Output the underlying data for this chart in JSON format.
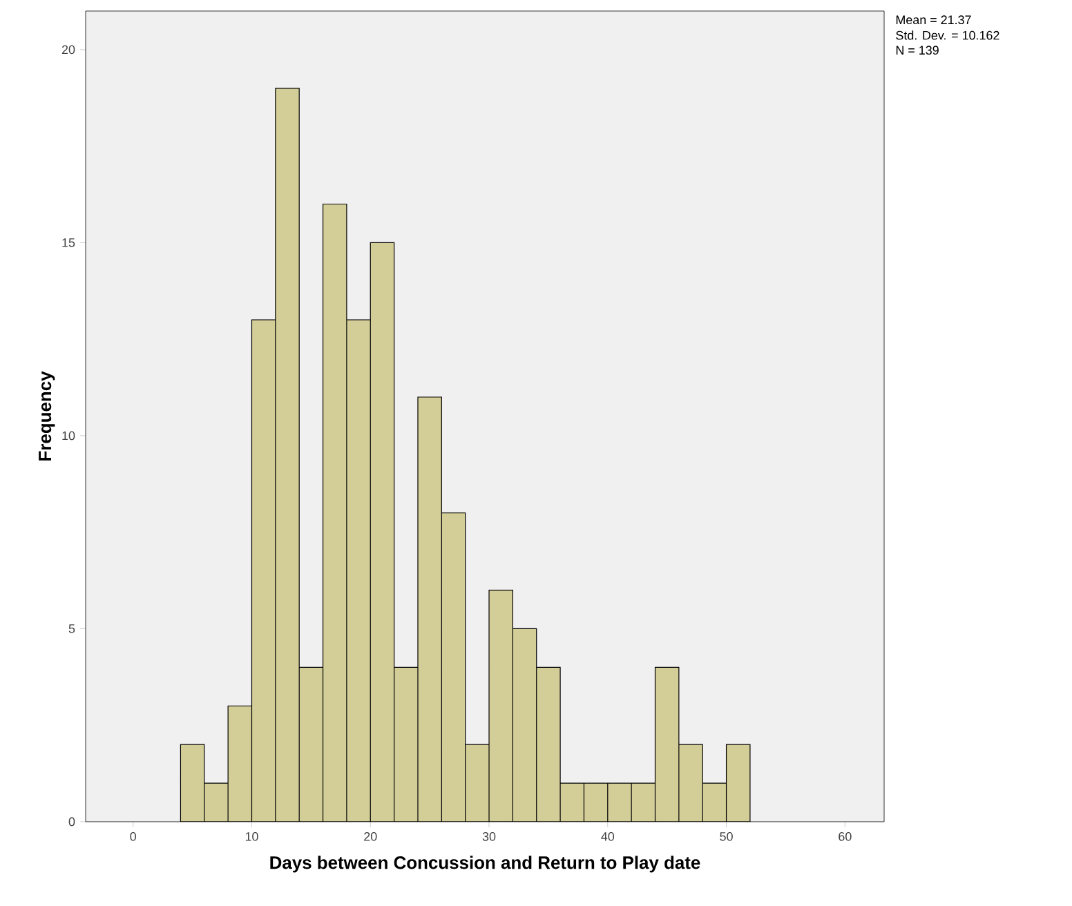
{
  "chart_data": {
    "type": "histogram",
    "bins": [
      4,
      6,
      8,
      10,
      12,
      14,
      16,
      18,
      20,
      22,
      24,
      26,
      28,
      30,
      32,
      34,
      36,
      38,
      40,
      42,
      44,
      46,
      48,
      50,
      52
    ],
    "values": [
      2,
      1,
      3,
      13,
      19,
      4,
      16,
      13,
      15,
      4,
      11,
      8,
      2,
      6,
      5,
      4,
      1,
      1,
      1,
      1,
      4,
      2,
      1,
      2
    ],
    "color": "#d3ce97",
    "xlim": [
      -4,
      63.3
    ],
    "ylim": [
      0,
      21
    ],
    "xticks": [
      0,
      10,
      20,
      30,
      40,
      50,
      60
    ],
    "yticks": [
      0,
      5,
      10,
      15,
      20
    ],
    "xlabel": "Days between Concussion and Return to Play date",
    "ylabel": "Frequency",
    "annotations": [
      "Mean = 21.37",
      "Std. Dev. = 10.162",
      "N = 139"
    ]
  }
}
